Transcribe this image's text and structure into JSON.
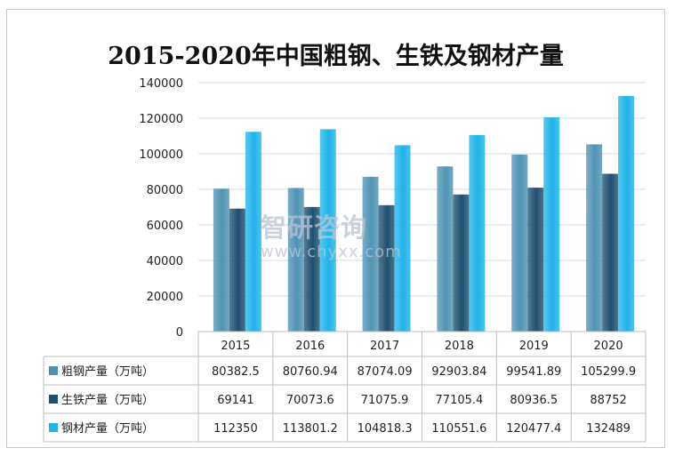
{
  "chart_data": {
    "type": "bar",
    "title": "2015-2020年中国粗钢、生铁及钢材产量",
    "categories": [
      "2015",
      "2016",
      "2017",
      "2018",
      "2019",
      "2020"
    ],
    "series": [
      {
        "name": "粗钢产量（万吨）",
        "values": [
          "80382.5",
          "80760.94",
          "87074.09",
          "92903.84",
          "99541.89",
          "105299.9"
        ],
        "color": "#4f93b4"
      },
      {
        "name": "生铁产量（万吨）",
        "values": [
          "69141",
          "70073.6",
          "71075.9",
          "77105.4",
          "80936.5",
          "88752"
        ],
        "color": "#1f5070"
      },
      {
        "name": "钢材产量（万吨）",
        "values": [
          "112350",
          "113801.2",
          "104818.3",
          "110551.6",
          "120477.4",
          "132489"
        ],
        "color": "#1fb4ea"
      }
    ],
    "ylim": [
      0,
      140000
    ],
    "yticks": [
      "0",
      "20000",
      "40000",
      "60000",
      "80000",
      "100000",
      "120000",
      "140000"
    ],
    "grid": true,
    "legend": "data-table"
  },
  "watermark": {
    "logo_text": "智研咨询",
    "url": "www.chyxx.com"
  }
}
